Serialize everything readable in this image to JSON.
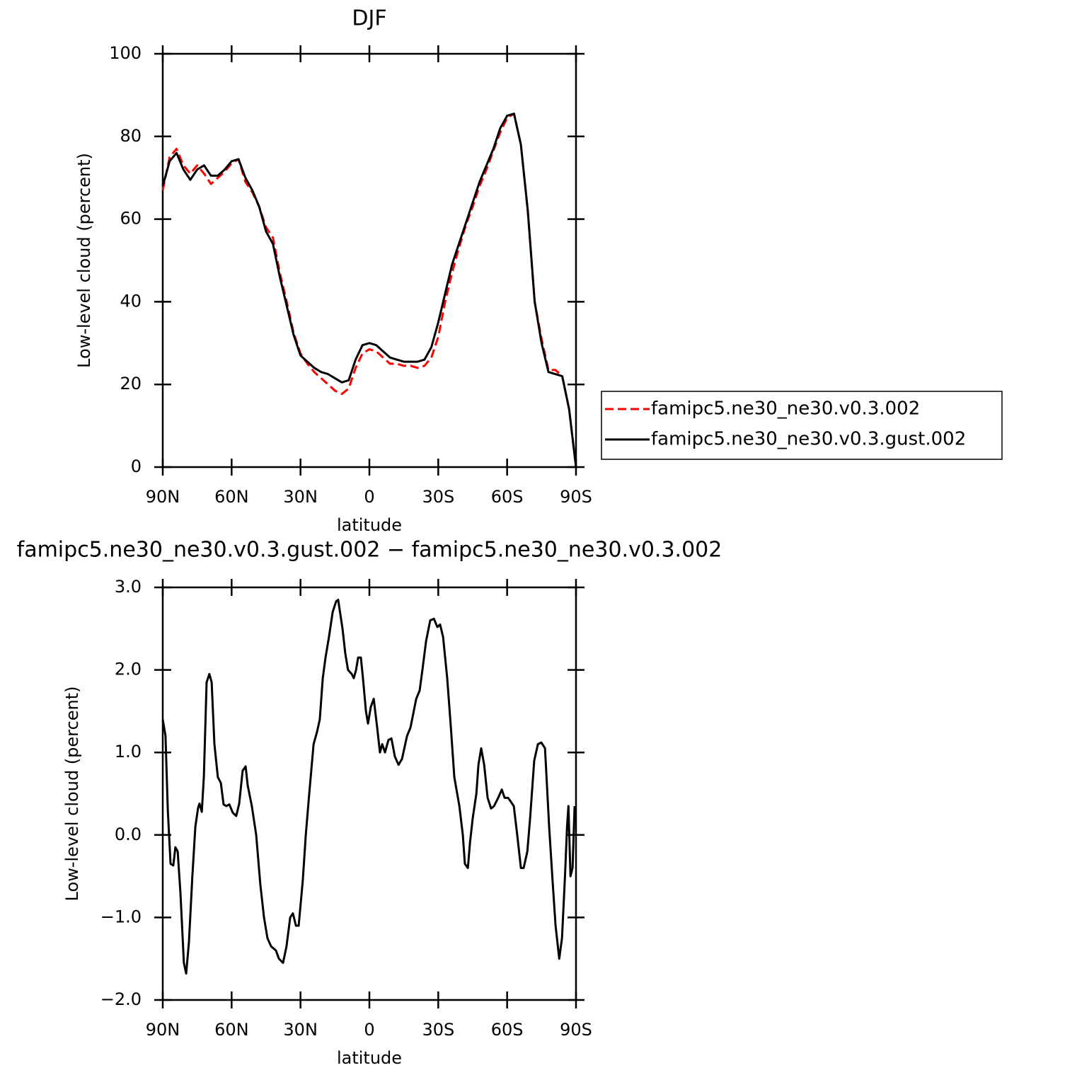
{
  "chart_data": [
    {
      "type": "line",
      "title": "DJF",
      "ylabel": "Low-level cloud (percent)",
      "xlabel": "latitude",
      "x": [
        90,
        87,
        84,
        81,
        78,
        75,
        72,
        69,
        66,
        63,
        60,
        57,
        54,
        51,
        48,
        45,
        42,
        39,
        36,
        33,
        30,
        27,
        24,
        21,
        18,
        15,
        12,
        9,
        6,
        3,
        0,
        -3,
        -6,
        -9,
        -12,
        -15,
        -18,
        -21,
        -24,
        -27,
        -30,
        -33,
        -36,
        -39,
        -42,
        -45,
        -48,
        -51,
        -54,
        -57,
        -60,
        -63,
        -66,
        -69,
        -72,
        -75,
        -78,
        -81,
        -84,
        -87,
        -90
      ],
      "xlim": [
        90,
        -90
      ],
      "xticks": [
        {
          "value": 90,
          "label": "90N"
        },
        {
          "value": 60,
          "label": "60N"
        },
        {
          "value": 30,
          "label": "30N"
        },
        0,
        {
          "value": -30,
          "label": "30S"
        },
        {
          "value": -60,
          "label": "60S"
        },
        {
          "value": -90,
          "label": "90S"
        }
      ],
      "ylim": [
        0,
        100
      ],
      "yticks": [
        0,
        20,
        40,
        60,
        80,
        100
      ],
      "series": [
        {
          "name": "famipc5.ne30_ne30.v0.3.002",
          "color": "#ff0000",
          "linestyle": "dashed",
          "values": [
            67,
            75,
            77,
            73,
            71,
            73,
            71,
            68.5,
            70,
            71.5,
            73.5,
            74.5,
            69,
            66.5,
            63,
            58,
            55.5,
            47,
            40,
            32.5,
            27.5,
            25,
            23,
            21.5,
            20,
            18.5,
            17.7,
            19,
            24,
            27.5,
            28.5,
            28,
            26.5,
            25,
            25,
            24.5,
            24.5,
            24,
            24.5,
            26.5,
            31.5,
            40,
            47,
            53,
            58.5,
            63,
            68,
            72,
            76.5,
            81,
            84.5,
            85.5,
            78,
            62,
            40,
            31,
            23.5,
            23.5,
            22,
            14,
            0
          ]
        },
        {
          "name": "famipc5.ne30_ne30.v0.3.gust.002",
          "color": "#000000",
          "linestyle": "solid",
          "values": [
            68,
            74,
            76,
            72,
            69.5,
            72,
            73,
            70.5,
            70.5,
            72,
            74,
            74.5,
            70,
            67,
            63,
            57,
            54,
            46,
            39,
            32,
            27,
            25.5,
            24,
            23,
            22.5,
            21.5,
            20.5,
            21,
            26,
            29.5,
            30,
            29.5,
            28,
            26.5,
            26,
            25.5,
            25.5,
            25.5,
            26,
            29,
            35,
            42,
            49,
            54,
            59,
            64,
            69,
            73,
            77,
            82,
            85,
            85.5,
            78,
            62,
            40,
            30,
            23,
            22.5,
            22,
            14,
            0
          ]
        }
      ]
    },
    {
      "type": "line",
      "title": "famipc5.ne30_ne30.v0.3.gust.002 − famipc5.ne30_ne30.v0.3.002",
      "ylabel": "Low-level cloud (percent)",
      "xlabel": "latitude",
      "x": [
        90,
        88.8,
        87.8,
        86.6,
        85.4,
        84.5,
        83.5,
        82.3,
        80.8,
        79.8,
        78.6,
        77.1,
        75.8,
        74.6,
        74.0,
        73.0,
        72.1,
        70.9,
        69.7,
        68.7,
        67.5,
        66.0,
        64.7,
        63.5,
        62.3,
        61.0,
        59.5,
        58.0,
        56.7,
        55.2,
        53.9,
        53.0,
        51.2,
        49.3,
        47.5,
        45.9,
        44.4,
        42.8,
        40.7,
        39.4,
        37.6,
        36.1,
        34.5,
        33.3,
        32.0,
        30.8,
        29.0,
        27.7,
        26.2,
        24.3,
        22.8,
        21.6,
        20.3,
        19.1,
        17.6,
        16.0,
        14.5,
        13.6,
        11.7,
        10.5,
        9.3,
        7.7,
        6.8,
        5.8,
        4.9,
        3.7,
        2.8,
        1.5,
        0.6,
        -0.6,
        -1.9,
        -3.4,
        -4.6,
        -5.6,
        -6.8,
        -8.3,
        -9.6,
        -11.1,
        -12.7,
        -14.2,
        -16.4,
        -17.9,
        -20.4,
        -21.9,
        -23.1,
        -24.7,
        -26.5,
        -28.1,
        -29.6,
        -30.8,
        -32.1,
        -33.9,
        -35.5,
        -37.0,
        -39.2,
        -40.7,
        -41.6,
        -42.9,
        -43.8,
        -45.0,
        -46.6,
        -47.5,
        -48.7,
        -50.0,
        -51.5,
        -53.0,
        -54.3,
        -56.1,
        -57.7,
        -58.9,
        -60.4,
        -61.7,
        -62.9,
        -64.4,
        -66.0,
        -67.2,
        -68.8,
        -70.0,
        -71.8,
        -73.4,
        -74.9,
        -76.5,
        -78.3,
        -79.9,
        -81.1,
        -82.7,
        -83.9,
        -85.2,
        -86.1,
        -86.7,
        -87.6,
        -88.5,
        -89.4
      ],
      "xlim": [
        90,
        -90
      ],
      "xticks": [
        {
          "value": 90,
          "label": "90N"
        },
        {
          "value": 60,
          "label": "60N"
        },
        {
          "value": 30,
          "label": "30N"
        },
        0,
        {
          "value": -30,
          "label": "30S"
        },
        {
          "value": -60,
          "label": "60S"
        },
        {
          "value": -90,
          "label": "90S"
        }
      ],
      "ylim": [
        -2,
        3
      ],
      "yticks": [
        {
          "value": -2,
          "label": "−2.0"
        },
        {
          "value": -1,
          "label": "−1.0"
        },
        {
          "value": 0,
          "label": "0.0"
        },
        {
          "value": 1,
          "label": "1.0"
        },
        {
          "value": 2,
          "label": "2.0"
        },
        {
          "value": 3,
          "label": "3.0"
        }
      ],
      "color": "#000000",
      "values": [
        1.4,
        1.2,
        0.3,
        -0.35,
        -0.37,
        -0.15,
        -0.2,
        -0.7,
        -1.55,
        -1.68,
        -1.3,
        -0.5,
        0.1,
        0.33,
        0.38,
        0.28,
        0.7,
        1.85,
        1.95,
        1.85,
        1.1,
        0.7,
        0.63,
        0.37,
        0.35,
        0.37,
        0.27,
        0.23,
        0.38,
        0.78,
        0.83,
        0.6,
        0.35,
        0.0,
        -0.6,
        -1.0,
        -1.25,
        -1.35,
        -1.4,
        -1.5,
        -1.55,
        -1.35,
        -1.0,
        -0.95,
        -1.1,
        -1.1,
        -0.55,
        0.0,
        0.5,
        1.1,
        1.25,
        1.4,
        1.9,
        2.15,
        2.4,
        2.7,
        2.83,
        2.85,
        2.5,
        2.2,
        2.0,
        1.95,
        1.9,
        2.0,
        2.15,
        2.15,
        1.9,
        1.5,
        1.35,
        1.55,
        1.65,
        1.3,
        1.0,
        1.1,
        1.0,
        1.15,
        1.17,
        0.95,
        0.85,
        0.92,
        1.2,
        1.3,
        1.65,
        1.75,
        2.0,
        2.35,
        2.6,
        2.62,
        2.52,
        2.55,
        2.4,
        1.9,
        1.3,
        0.7,
        0.35,
        0.0,
        -0.35,
        -0.4,
        -0.1,
        0.2,
        0.5,
        0.85,
        1.05,
        0.85,
        0.45,
        0.32,
        0.35,
        0.45,
        0.55,
        0.45,
        0.45,
        0.4,
        0.35,
        0.0,
        -0.4,
        -0.4,
        -0.2,
        0.2,
        0.9,
        1.1,
        1.12,
        1.05,
        0.1,
        -0.6,
        -1.1,
        -1.5,
        -1.25,
        -0.5,
        0.1,
        0.35,
        -0.5,
        -0.4,
        0.35
      ]
    }
  ]
}
